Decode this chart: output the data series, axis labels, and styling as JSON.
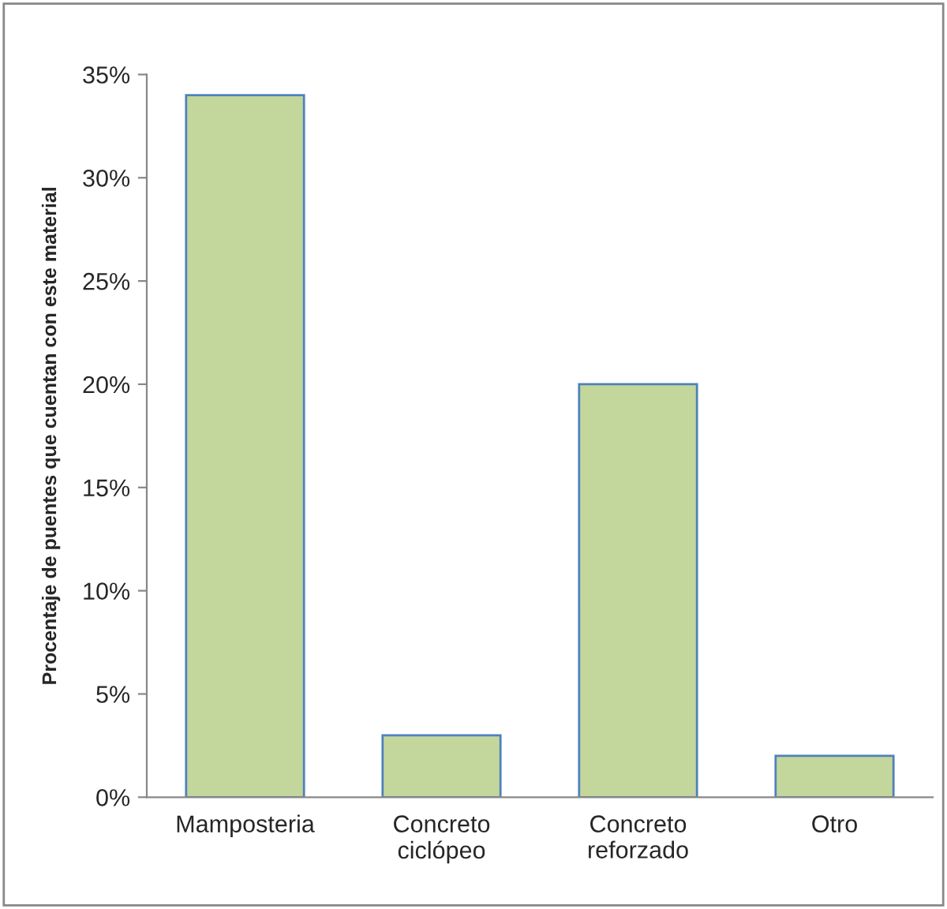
{
  "chart_data": {
    "type": "bar",
    "ylabel": "Procentaje de puentes que cuentan con este material",
    "categories": [
      "Mamposteria",
      "Concreto\nciclópeo",
      "Concreto\nreforzado",
      "Otro"
    ],
    "values": [
      34,
      3,
      20,
      2
    ],
    "color": "#c3d69b",
    "ylim": [
      0,
      35
    ],
    "yticks": [
      {
        "value": 0,
        "label": "0%"
      },
      {
        "value": 5,
        "label": "5%"
      },
      {
        "value": 10,
        "label": "10%"
      },
      {
        "value": 15,
        "label": "15%"
      },
      {
        "value": 20,
        "label": "20%"
      },
      {
        "value": 25,
        "label": "25%"
      },
      {
        "value": 30,
        "label": "30%"
      },
      {
        "value": 35,
        "label": "35%"
      }
    ],
    "grid": false,
    "legend": false
  }
}
